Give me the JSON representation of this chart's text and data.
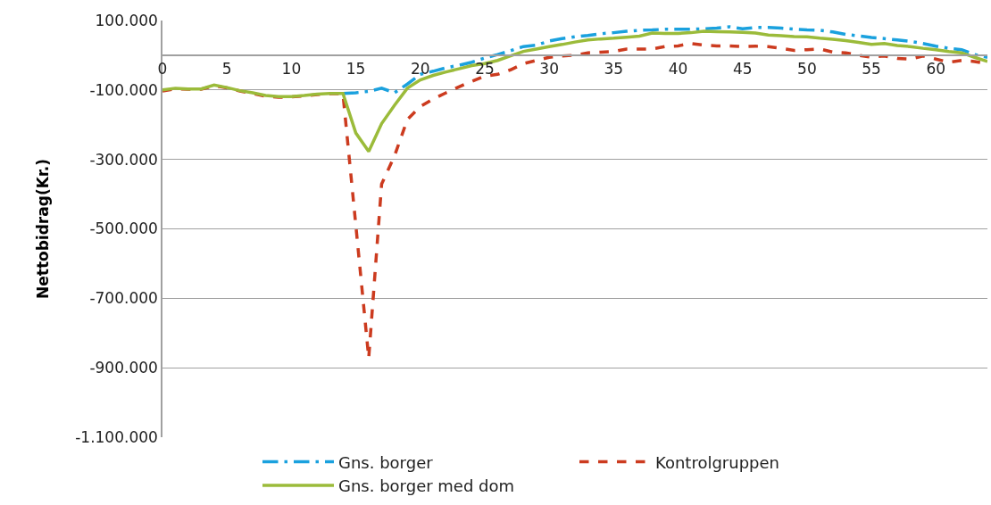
{
  "chart_data": {
    "type": "line",
    "ylabel": "Nettobidrag(Kr.)",
    "x": [
      0,
      1,
      2,
      3,
      4,
      5,
      6,
      7,
      8,
      9,
      10,
      11,
      12,
      13,
      14,
      15,
      16,
      17,
      18,
      19,
      20,
      21,
      22,
      23,
      24,
      25,
      26,
      27,
      28,
      29,
      30,
      31,
      32,
      33,
      34,
      35,
      36,
      37,
      38,
      39,
      40,
      41,
      42,
      43,
      44,
      45,
      46,
      47,
      48,
      49,
      50,
      51,
      52,
      53,
      54,
      55,
      56,
      57,
      58,
      59,
      60,
      61,
      62,
      63,
      64
    ],
    "series": [
      {
        "name": "Gns. borger",
        "color": "#1aa1de",
        "line_style": "dashdot",
        "values": [
          null,
          null,
          null,
          null,
          null,
          null,
          null,
          null,
          null,
          null,
          null,
          null,
          null,
          null,
          -110000,
          -108000,
          -104000,
          -95000,
          -108000,
          -83000,
          -55000,
          -46000,
          -36000,
          -29000,
          -20000,
          -8000,
          2000,
          13000,
          25000,
          29000,
          41000,
          48000,
          53000,
          57000,
          62000,
          65000,
          69000,
          72000,
          73000,
          75000,
          75000,
          75000,
          76000,
          78000,
          82000,
          76000,
          80000,
          80000,
          78000,
          75000,
          73000,
          72000,
          67000,
          60000,
          56000,
          51000,
          48000,
          44000,
          40000,
          34000,
          26000,
          20000,
          16000,
          2000,
          -6000
        ]
      },
      {
        "name": "Kontrolgruppen",
        "color": "#cc3b1f",
        "line_style": "dashed",
        "values": [
          -103000,
          -97000,
          -98000,
          -98000,
          -88000,
          -94000,
          -103000,
          -110000,
          -118000,
          -121000,
          -120000,
          -117000,
          -113000,
          -111000,
          -111000,
          -490000,
          -872000,
          -371000,
          -290000,
          -185000,
          -148000,
          -126000,
          -108000,
          -91000,
          -75000,
          -60000,
          -55000,
          -42000,
          -24000,
          -15000,
          -6000,
          -2000,
          0,
          7000,
          9000,
          11000,
          18000,
          18000,
          18000,
          25000,
          27000,
          34000,
          29000,
          27000,
          27000,
          25000,
          26000,
          25000,
          20000,
          14000,
          16000,
          18000,
          9000,
          7000,
          0,
          -6000,
          -2000,
          -9000,
          -11000,
          -2000,
          -11000,
          -20000,
          -15000,
          -18000,
          -24000
        ]
      },
      {
        "name": "Gns. borger med dom",
        "color": "#9bbb3a",
        "line_style": "solid",
        "values": [
          -100000,
          -95000,
          -97000,
          -97000,
          -86000,
          -93000,
          -102000,
          -108000,
          -116000,
          -119000,
          -119000,
          -116000,
          -112000,
          -110000,
          -110000,
          -224000,
          -277000,
          -197000,
          -144000,
          -95000,
          -71000,
          -58000,
          -48000,
          -39000,
          -30000,
          -24000,
          -15000,
          -2000,
          11000,
          18000,
          25000,
          31000,
          38000,
          44000,
          47000,
          49000,
          52000,
          55000,
          64000,
          63000,
          63000,
          65000,
          69000,
          68000,
          67000,
          66000,
          64000,
          58000,
          56000,
          54000,
          53000,
          49000,
          46000,
          42000,
          37000,
          31000,
          34000,
          28000,
          25000,
          20000,
          16000,
          11000,
          7000,
          -6000,
          -18000
        ]
      }
    ],
    "xlim": [
      0,
      64
    ],
    "xticks": [
      0,
      5,
      10,
      15,
      20,
      25,
      30,
      35,
      40,
      45,
      50,
      55,
      60
    ],
    "ylim": [
      -1100000,
      100000
    ],
    "yticks": [
      {
        "value": 100000,
        "label": "100.000"
      },
      {
        "value": -100000,
        "label": "-100.000"
      },
      {
        "value": -300000,
        "label": "-300.000"
      },
      {
        "value": -500000,
        "label": "-500.000"
      },
      {
        "value": -700000,
        "label": "-700.000"
      },
      {
        "value": -900000,
        "label": "-900.000"
      },
      {
        "value": -1100000,
        "label": "-1.100.000"
      }
    ],
    "grid": "y",
    "legend": "bottom",
    "marker": "none"
  }
}
